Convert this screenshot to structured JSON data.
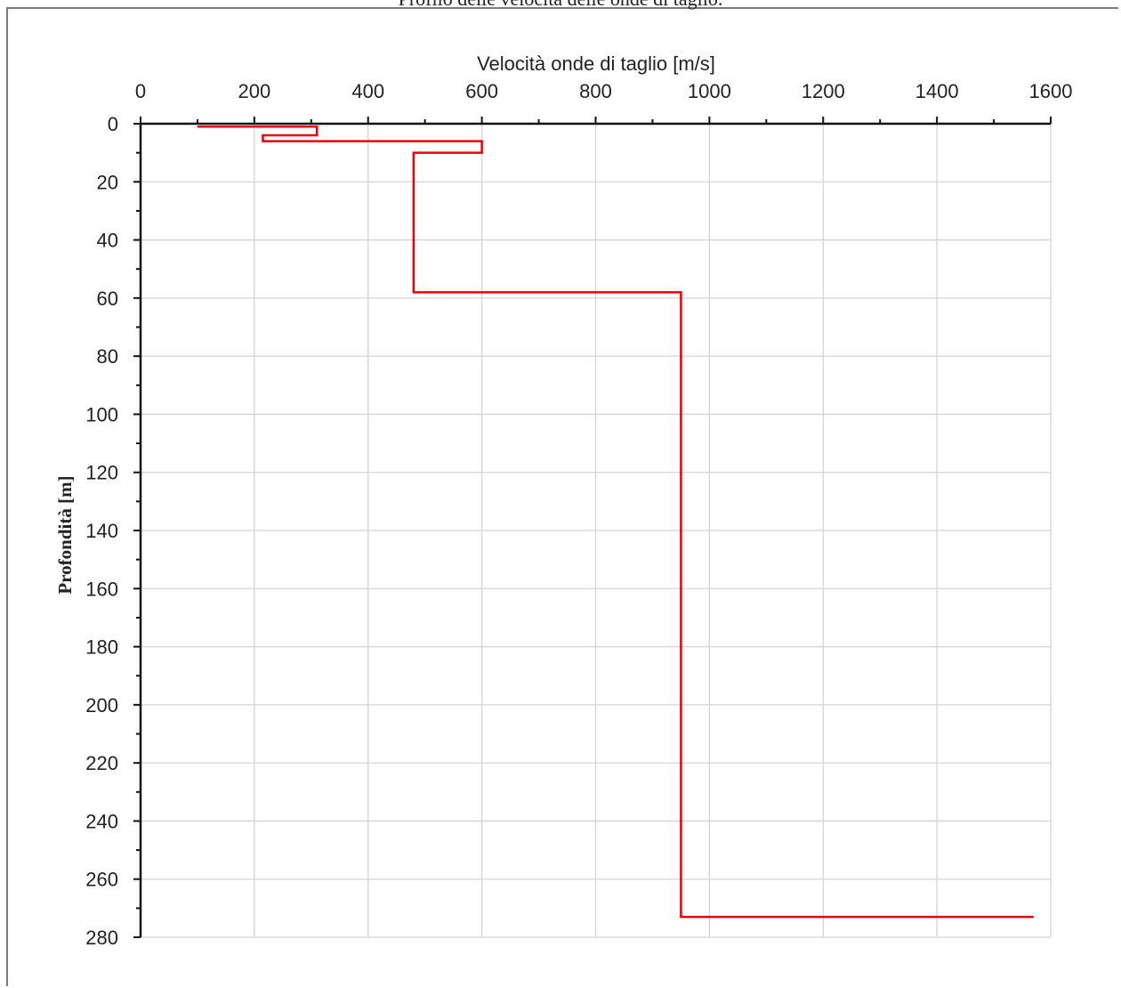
{
  "page": {
    "title": "Profilo delle velocità delle onde di taglio."
  },
  "chart_data": {
    "type": "line",
    "title": "Profilo delle velocità delle onde di taglio.",
    "xlabel": "Velocità onde di taglio [m/s]",
    "ylabel": "Profondità [m]",
    "x_axis_position": "top",
    "y_axis_inverted": true,
    "xlim": [
      0,
      1600
    ],
    "ylim": [
      0,
      280
    ],
    "xticks": [
      0,
      200,
      400,
      600,
      800,
      1000,
      1200,
      1400,
      1600
    ],
    "yticks": [
      0,
      20,
      40,
      60,
      80,
      100,
      120,
      140,
      160,
      180,
      200,
      220,
      240,
      260,
      280
    ],
    "grid": true,
    "series": [
      {
        "color": "#e8000b",
        "x": [
          100,
          310,
          310,
          215,
          215,
          600,
          600,
          480,
          480,
          950,
          950,
          1570
        ],
        "y": [
          1,
          1,
          4,
          4,
          6,
          6,
          10,
          10,
          58,
          58,
          273,
          273
        ]
      }
    ]
  }
}
